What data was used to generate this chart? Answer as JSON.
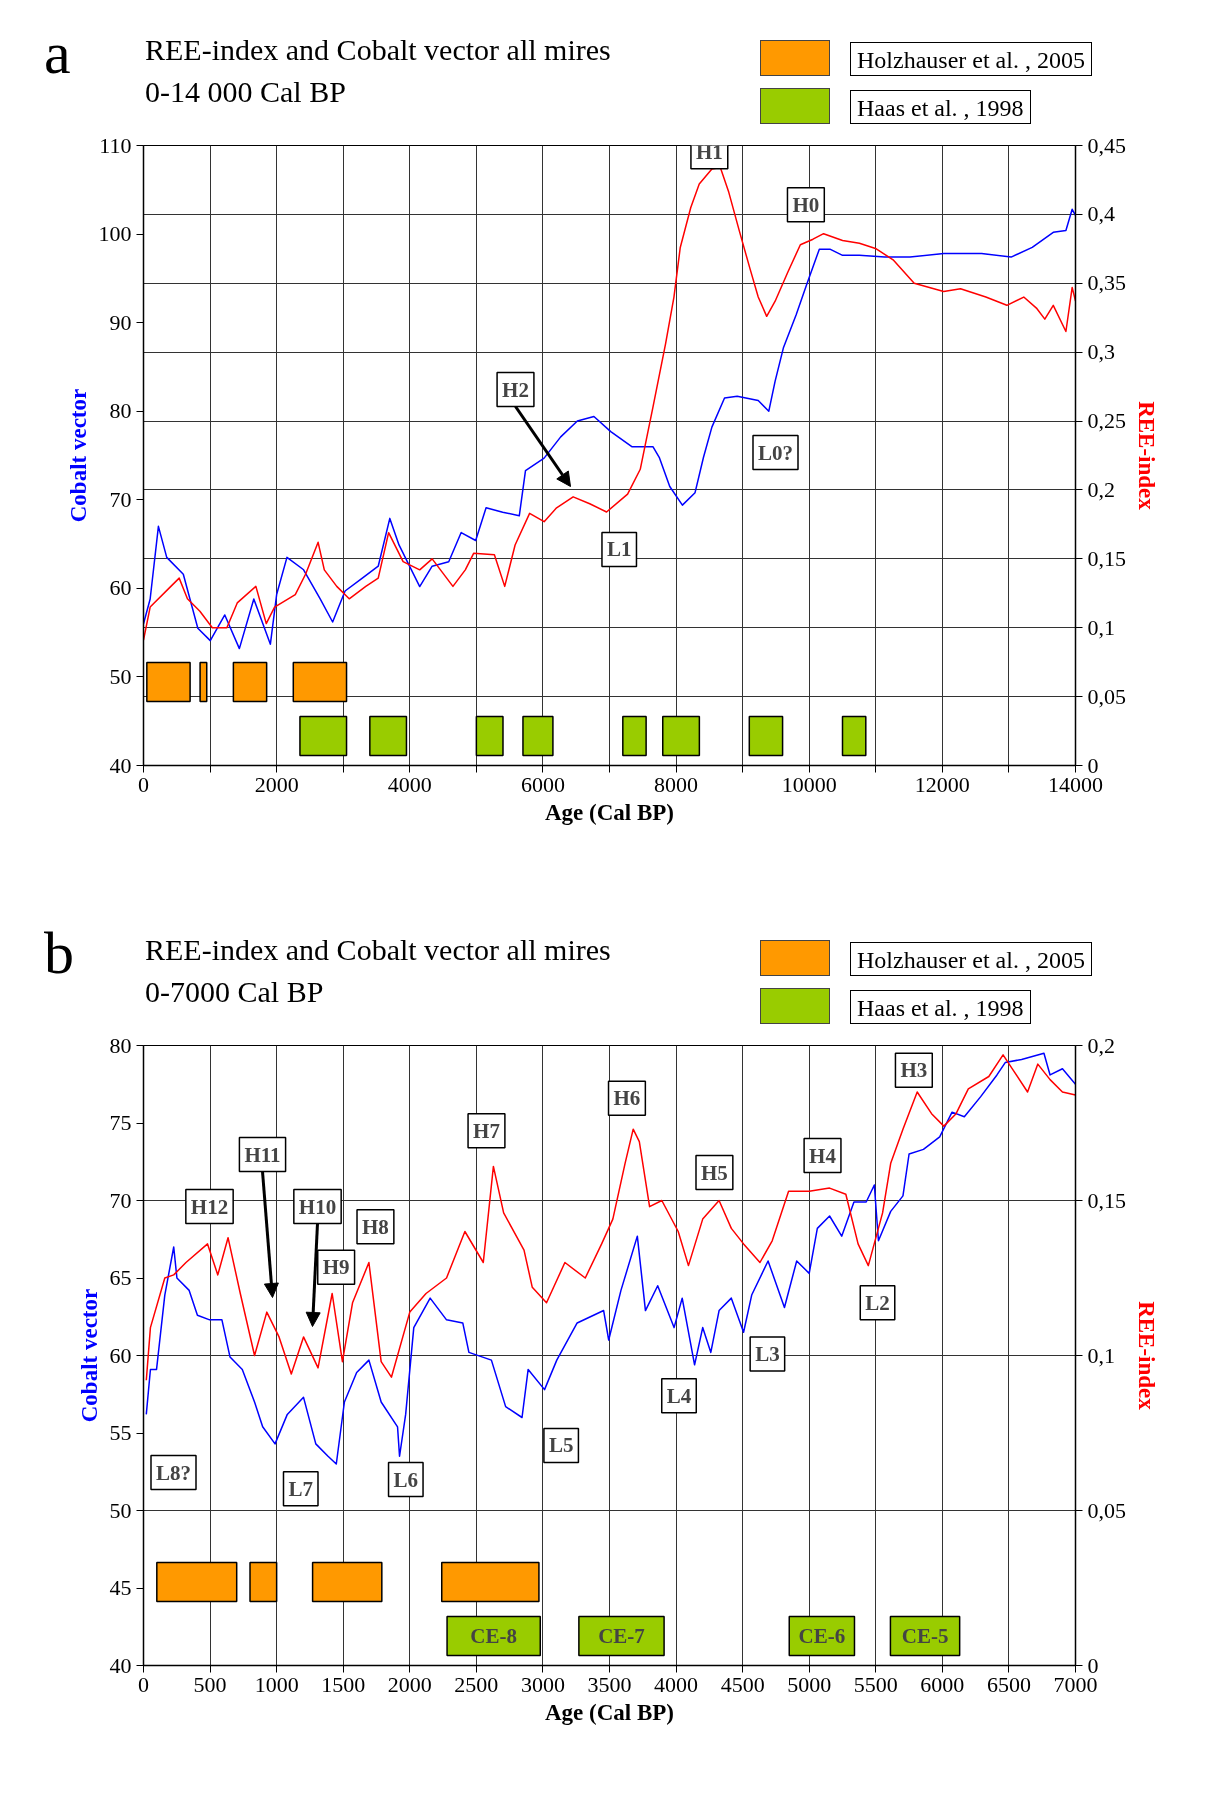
{
  "chart_data": [
    {
      "type": "line",
      "title": "REE-index and Cobalt vector all mires",
      "subtitle": "0-14 000 Cal BP",
      "xlabel": "Age (Cal BP)",
      "ylabel": "Cobalt vector",
      "y2label": "REE-index",
      "grid": true,
      "xlim": [
        0,
        14000
      ],
      "xticks": [
        0,
        {
          "value": 1000,
          "label": null
        },
        2000,
        {
          "value": 3000,
          "label": null
        },
        4000,
        {
          "value": 5000,
          "label": null
        },
        6000,
        {
          "value": 7000,
          "label": null
        },
        8000,
        {
          "value": 9000,
          "label": null
        },
        10000,
        {
          "value": 11000,
          "label": null
        },
        12000,
        {
          "value": 13000,
          "label": null
        },
        14000
      ],
      "ylim": [
        40,
        110
      ],
      "yticks": [
        40,
        50,
        60,
        70,
        80,
        90,
        100,
        110
      ],
      "y2lim": [
        0,
        0.45
      ],
      "y2ticks": [
        {
          "value": 0,
          "label": "0"
        },
        {
          "value": 0.05,
          "label": "0,05"
        },
        {
          "value": 0.1,
          "label": "0,1"
        },
        {
          "value": 0.15,
          "label": "0,15"
        },
        {
          "value": 0.2,
          "label": "0,2"
        },
        {
          "value": 0.25,
          "label": "0,25"
        },
        {
          "value": 0.3,
          "label": "0,3"
        },
        {
          "value": 0.35,
          "label": "0,35"
        },
        {
          "value": 0.4,
          "label": "0,4"
        },
        {
          "value": 0.45,
          "label": "0,45"
        }
      ],
      "series": [
        {
          "color": "#0000ff",
          "x": [
            0,
            100,
            224,
            349,
            598,
            816,
            1003,
            1221,
            1440,
            1657,
            1906,
            2000,
            2155,
            2405,
            2654,
            2841,
            3028,
            3277,
            3526,
            3700,
            3838,
            4149,
            4336,
            4585,
            4772,
            4990,
            5146,
            5396,
            5645,
            5738,
            6018,
            6267,
            6517,
            6766,
            7019,
            7335,
            7652,
            7747,
            7905,
            8095,
            8285,
            8412,
            8538,
            8728,
            8918,
            9234,
            9393,
            9488,
            9614,
            9804,
            9962,
            10152,
            10311,
            10501,
            10754,
            11134,
            11514,
            12020,
            12590,
            13033,
            13350,
            13666,
            13856,
            13950,
            14000
          ],
          "values": [
            56.0,
            58.8,
            67.0,
            63.5,
            61.6,
            55.5,
            54.1,
            57.0,
            53.2,
            58.8,
            53.7,
            59.3,
            63.5,
            62.1,
            58.8,
            56.2,
            59.7,
            61.1,
            62.5,
            67.9,
            64.9,
            60.2,
            62.5,
            63.0,
            66.3,
            65.4,
            69.1,
            68.6,
            68.2,
            73.3,
            74.7,
            77.1,
            78.9,
            79.4,
            77.7,
            76.0,
            76.0,
            74.8,
            71.5,
            69.4,
            70.8,
            74.8,
            78.2,
            81.5,
            81.7,
            81.2,
            80.0,
            83.4,
            87.2,
            90.9,
            94.3,
            98.3,
            98.3,
            97.6,
            97.6,
            97.4,
            97.4,
            97.8,
            97.8,
            97.4,
            98.5,
            100.2,
            100.4,
            102.8,
            102.1
          ]
        },
        {
          "color": "#ff0000",
          "axis": "y2",
          "x": [
            0,
            100,
            411,
            536,
            660,
            847,
            1034,
            1252,
            1408,
            1688,
            1844,
            1969,
            2280,
            2436,
            2623,
            2716,
            2903,
            3090,
            3339,
            3526,
            3682,
            3900,
            4149,
            4336,
            4648,
            4834,
            4959,
            5271,
            5426,
            5582,
            5800,
            6018,
            6205,
            6454,
            6703,
            6956,
            7272,
            7462,
            7652,
            7842,
            7968,
            8063,
            8221,
            8348,
            8538,
            8665,
            8792,
            8950,
            9108,
            9234,
            9361,
            9488,
            9678,
            9867,
            10057,
            10216,
            10501,
            10754,
            11007,
            11260,
            11577,
            12020,
            12273,
            12653,
            12969,
            13223,
            13413,
            13539,
            13666,
            13856,
            13950,
            14000
          ],
          "values": [
            0.091,
            0.115,
            0.13,
            0.136,
            0.121,
            0.112,
            0.1,
            0.1,
            0.118,
            0.13,
            0.103,
            0.115,
            0.124,
            0.139,
            0.162,
            0.142,
            0.13,
            0.121,
            0.13,
            0.136,
            0.169,
            0.148,
            0.142,
            0.15,
            0.13,
            0.142,
            0.154,
            0.153,
            0.13,
            0.16,
            0.183,
            0.177,
            0.187,
            0.195,
            0.19,
            0.184,
            0.197,
            0.215,
            0.26,
            0.306,
            0.34,
            0.376,
            0.405,
            0.422,
            0.433,
            0.434,
            0.416,
            0.388,
            0.361,
            0.34,
            0.326,
            0.337,
            0.358,
            0.378,
            0.382,
            0.386,
            0.381,
            0.379,
            0.375,
            0.367,
            0.35,
            0.344,
            0.346,
            0.34,
            0.334,
            0.34,
            0.332,
            0.324,
            0.334,
            0.315,
            0.347,
            0.337
          ]
        }
      ],
      "bands": [
        {
          "axis": "x",
          "from": 50,
          "to": 700,
          "color": "#ff9900"
        },
        {
          "axis": "x",
          "from": 850,
          "to": 950,
          "color": "#ff9900"
        },
        {
          "axis": "x",
          "from": 1350,
          "to": 1850,
          "color": "#ff9900"
        },
        {
          "axis": "x",
          "from": 2250,
          "to": 3050,
          "color": "#ff9900"
        },
        {
          "axis": "x",
          "from": 2350,
          "to": 3050,
          "color": "#99cc00"
        },
        {
          "axis": "x",
          "from": 3400,
          "to": 3950,
          "color": "#99cc00"
        },
        {
          "axis": "x",
          "from": 5000,
          "to": 5400,
          "color": "#99cc00"
        },
        {
          "axis": "x",
          "from": 5700,
          "to": 6150,
          "color": "#99cc00"
        },
        {
          "axis": "x",
          "from": 7200,
          "to": 7550,
          "color": "#99cc00"
        },
        {
          "axis": "x",
          "from": 7800,
          "to": 8350,
          "color": "#99cc00"
        },
        {
          "axis": "x",
          "from": 9100,
          "to": 9600,
          "color": "#99cc00"
        },
        {
          "axis": "x",
          "from": 10500,
          "to": 10850,
          "color": "#99cc00"
        }
      ],
      "annotations": [
        "a",
        "Holzhauser et al. , 2005",
        "Haas et al. , 1998",
        "L0?",
        "H2",
        {
          "text": "H1",
          "x": 8500,
          "y": 109.3
        },
        {
          "text": "H0",
          "x": 9950,
          "y": 103.3
        },
        {
          "text": "L1",
          "x": 7146,
          "y": 64.4
        }
      ]
    },
    {
      "type": "line",
      "title": "REE-index and Cobalt vector all mires",
      "subtitle": "0-7000 Cal BP",
      "xlabel": "Age (Cal BP)",
      "ylabel": "Cobalt vector",
      "y2label": "REE-index",
      "grid": true,
      "xlim": [
        0,
        7000
      ],
      "xticks": [
        0,
        500,
        1000,
        1500,
        2000,
        2500,
        3000,
        3500,
        4000,
        4500,
        5000,
        5500,
        6000,
        6500,
        7000
      ],
      "ylim": [
        40,
        80
      ],
      "yticks": [
        40,
        45,
        50,
        55,
        60,
        65,
        70,
        75,
        80
      ],
      "y2lim": [
        0,
        0.2
      ],
      "y2ticks": [
        {
          "value": 0,
          "label": "0"
        },
        {
          "value": 0.05,
          "label": "0,05"
        },
        {
          "value": 0.1,
          "label": "0,1"
        },
        {
          "value": 0.15,
          "label": "0,15"
        },
        {
          "value": 0.2,
          "label": "0,2"
        }
      ],
      "series": [
        {
          "color": "#0000ff",
          "x": [
            21,
            52,
            98,
            160,
            227,
            251,
            343,
            405,
            497,
            589,
            650,
            742,
            834,
            895,
            988,
            1080,
            1202,
            1294,
            1386,
            1448,
            1509,
            1601,
            1693,
            1785,
            1908,
            1923,
            1969,
            2030,
            2153,
            2276,
            2398,
            2444,
            2613,
            2720,
            2843,
            2889,
            3012,
            3104,
            3257,
            3456,
            3494,
            3586,
            3709,
            3770,
            3862,
            3985,
            4046,
            4139,
            4200,
            4261,
            4323,
            4415,
            4507,
            4568,
            4691,
            4814,
            4906,
            5000,
            5061,
            5153,
            5244,
            5336,
            5428,
            5489,
            5520,
            5612,
            5704,
            5750,
            5858,
            5980,
            6073,
            6165,
            6288,
            6410,
            6472,
            6595,
            6763,
            6809,
            6902,
            7000
          ],
          "values": [
            56.2,
            59.1,
            59.1,
            63.9,
            67.0,
            65.0,
            64.2,
            62.6,
            62.3,
            62.3,
            59.9,
            59.1,
            57.0,
            55.4,
            54.3,
            56.2,
            57.3,
            54.3,
            53.5,
            53.0,
            57.0,
            58.9,
            59.7,
            57.0,
            55.4,
            53.5,
            56.2,
            61.8,
            63.7,
            62.3,
            62.1,
            60.2,
            59.7,
            56.7,
            56.0,
            59.1,
            57.8,
            59.7,
            62.1,
            62.9,
            61.0,
            64.2,
            67.7,
            62.9,
            64.5,
            61.8,
            63.7,
            59.4,
            61.8,
            60.2,
            62.9,
            63.7,
            61.5,
            63.9,
            66.1,
            63.1,
            66.1,
            65.3,
            68.2,
            69.0,
            67.7,
            69.9,
            69.9,
            71.0,
            67.4,
            69.3,
            70.3,
            73.0,
            73.3,
            74.1,
            75.7,
            75.4,
            76.7,
            78.1,
            78.9,
            79.1,
            79.5,
            78.1,
            78.5,
            77.5
          ]
        },
        {
          "color": "#ff0000",
          "axis": "y2",
          "x": [
            21,
            52,
            160,
            227,
            319,
            481,
            558,
            635,
            727,
            834,
            926,
            1018,
            1110,
            1202,
            1311,
            1417,
            1494,
            1570,
            1693,
            1785,
            1862,
            2000,
            2122,
            2276,
            2414,
            2552,
            2628,
            2705,
            2858,
            2920,
            3027,
            3165,
            3318,
            3441,
            3525,
            3617,
            3678,
            3724,
            3801,
            3893,
            4016,
            4093,
            4200,
            4323,
            4415,
            4507,
            4630,
            4722,
            4845,
            5000,
            5153,
            5275,
            5367,
            5444,
            5551,
            5612,
            5704,
            5811,
            5919,
            6011,
            6103,
            6195,
            6349,
            6456,
            6533,
            6640,
            6717,
            6809,
            6902,
            7000
          ],
          "values": [
            0.092,
            0.109,
            0.125,
            0.126,
            0.13,
            0.136,
            0.126,
            0.138,
            0.12,
            0.1,
            0.114,
            0.106,
            0.094,
            0.106,
            0.096,
            0.12,
            0.098,
            0.117,
            0.13,
            0.098,
            0.093,
            0.114,
            0.12,
            0.125,
            0.14,
            0.13,
            0.161,
            0.146,
            0.134,
            0.122,
            0.117,
            0.13,
            0.125,
            0.136,
            0.144,
            0.162,
            0.173,
            0.169,
            0.148,
            0.15,
            0.14,
            0.129,
            0.144,
            0.15,
            0.141,
            0.136,
            0.13,
            0.137,
            0.153,
            0.153,
            0.154,
            0.152,
            0.136,
            0.129,
            0.146,
            0.162,
            0.173,
            0.185,
            0.178,
            0.174,
            0.178,
            0.186,
            0.19,
            0.197,
            0.192,
            0.185,
            0.194,
            0.189,
            0.185,
            0.184
          ]
        }
      ],
      "bands": [
        {
          "axis": "x",
          "from": 100,
          "to": 700,
          "color": "#ff9900"
        },
        {
          "axis": "x",
          "from": 800,
          "to": 1000,
          "color": "#ff9900"
        },
        {
          "axis": "x",
          "from": 1270,
          "to": 1790,
          "color": "#ff9900"
        },
        {
          "axis": "x",
          "from": 2240,
          "to": 2970,
          "color": "#ff9900"
        },
        {
          "axis": "x",
          "from": 2280,
          "to": 2980,
          "color": "#99cc00",
          "label": "CE-8"
        },
        {
          "axis": "x",
          "from": 3270,
          "to": 3910,
          "color": "#99cc00",
          "label": "CE-7"
        },
        {
          "axis": "x",
          "from": 4850,
          "to": 5340,
          "color": "#99cc00",
          "label": "CE-6"
        },
        {
          "axis": "x",
          "from": 5610,
          "to": 6130,
          "color": "#99cc00",
          "label": "CE-5"
        }
      ],
      "annotations": [
        "b",
        "Holzhauser et al. , 2005",
        "Haas et al. , 1998",
        "H12",
        "H11",
        "H10",
        "L8?",
        {
          "text": "H9",
          "x": 1447,
          "y": 65.7
        },
        {
          "text": "H8",
          "x": 1742,
          "y": 68.3
        },
        {
          "text": "H7",
          "x": 2576,
          "y": 74.5
        },
        {
          "text": "H6",
          "x": 3631,
          "y": 76.6
        },
        {
          "text": "H5",
          "x": 4288,
          "y": 71.8
        },
        {
          "text": "H4",
          "x": 5100,
          "y": 72.9
        },
        {
          "text": "H3",
          "x": 5786,
          "y": 78.4
        },
        {
          "text": "L7",
          "x": 1181,
          "y": 51.4
        },
        {
          "text": "L6",
          "x": 1970,
          "y": 52.0
        },
        {
          "text": "L5",
          "x": 3137,
          "y": 54.2
        },
        {
          "text": "L4",
          "x": 4022,
          "y": 57.4
        },
        {
          "text": "L3",
          "x": 4686,
          "y": 60.1
        },
        {
          "text": "L2",
          "x": 5513,
          "y": 63.4
        }
      ]
    }
  ]
}
